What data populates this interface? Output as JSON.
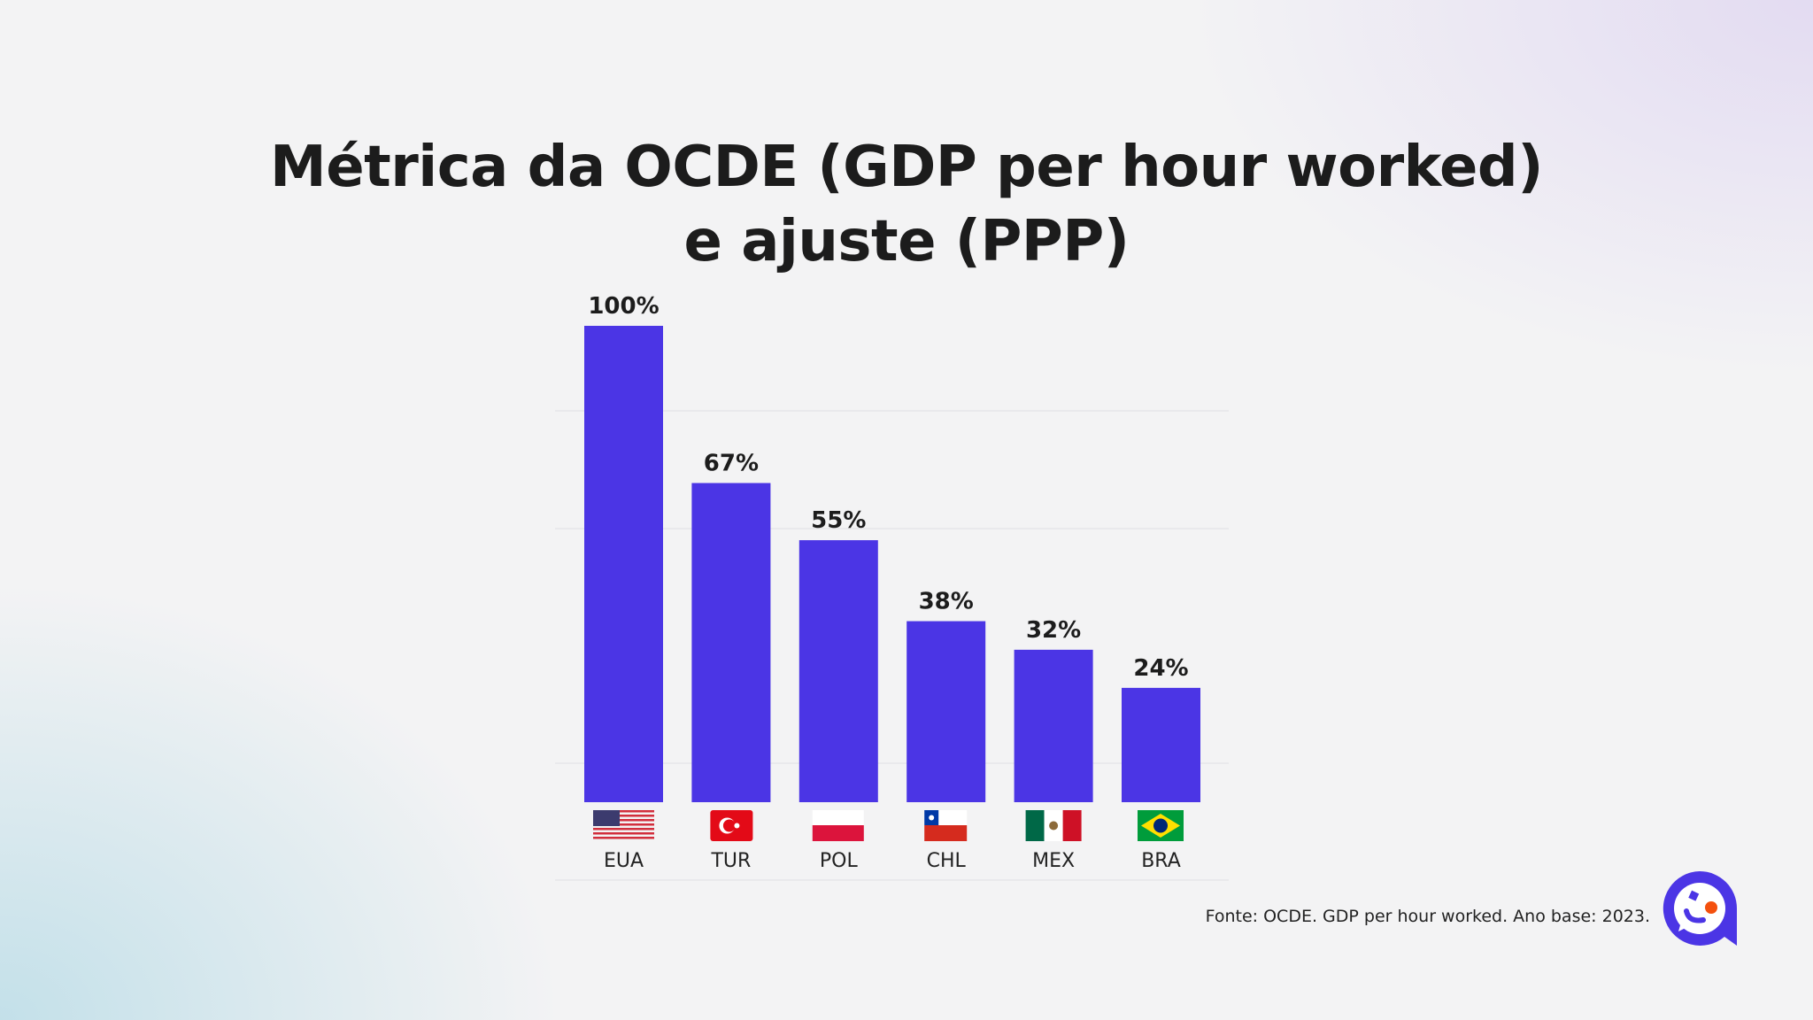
{
  "title_lines": [
    "Métrica da OCDE (GDP per hour worked)",
    "e ajuste (PPP)"
  ],
  "source": "Fonte: OCDE. GDP per hour worked. Ano base: 2023.",
  "brand_color": "#4b35e5",
  "chart_data": {
    "type": "bar",
    "title": "Métrica da OCDE (GDP per hour worked) e ajuste (PPP)",
    "categories": [
      "EUA",
      "TUR",
      "POL",
      "CHL",
      "MEX",
      "BRA"
    ],
    "flags": [
      "flag-usa",
      "flag-turkey",
      "flag-poland",
      "flag-chile",
      "flag-mexico",
      "flag-brazil"
    ],
    "values": [
      100,
      67,
      55,
      38,
      32,
      24
    ],
    "data_labels": [
      "100%",
      "67%",
      "55%",
      "38%",
      "32%",
      "24%"
    ],
    "unit": "%",
    "ylim": [
      0,
      100
    ],
    "grid": true,
    "bar_color": "#4b35e5"
  }
}
